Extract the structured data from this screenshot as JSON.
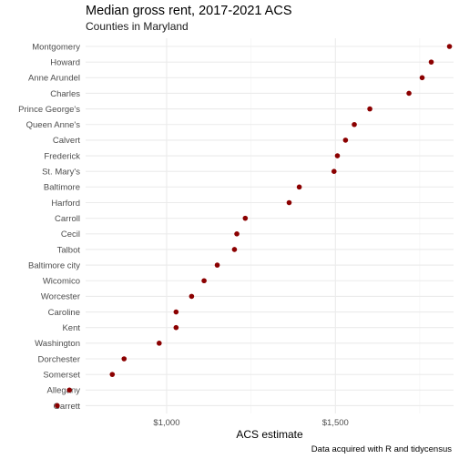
{
  "chart_data": {
    "type": "scatter",
    "title": "Median gross rent, 2017-2021 ACS",
    "subtitle": "Counties in Maryland",
    "xlabel": "ACS estimate",
    "ylabel": "",
    "caption": "Data acquired with R and tidycensus",
    "x_ticks": [
      1000,
      1500
    ],
    "x_tick_labels": [
      "$1,000",
      "$1,500"
    ],
    "xlim": [
      760,
      1850
    ],
    "grid": true,
    "point_color": "#8b0000",
    "categories": [
      "Montgomery",
      "Howard",
      "Anne Arundel",
      "Charles",
      "Prince George's",
      "Queen Anne's",
      "Calvert",
      "Frederick",
      "St. Mary's",
      "Baltimore",
      "Harford",
      "Carroll",
      "Cecil",
      "Talbot",
      "Baltimore city",
      "Wicomico",
      "Worcester",
      "Caroline",
      "Kent",
      "Washington",
      "Dorchester",
      "Somerset",
      "Allegany",
      "Garrett"
    ],
    "values": [
      1838,
      1784,
      1757,
      1718,
      1602,
      1556,
      1530,
      1506,
      1496,
      1393,
      1363,
      1233,
      1208,
      1201,
      1150,
      1111,
      1074,
      1028,
      1028,
      978,
      874,
      839,
      712,
      676
    ]
  }
}
